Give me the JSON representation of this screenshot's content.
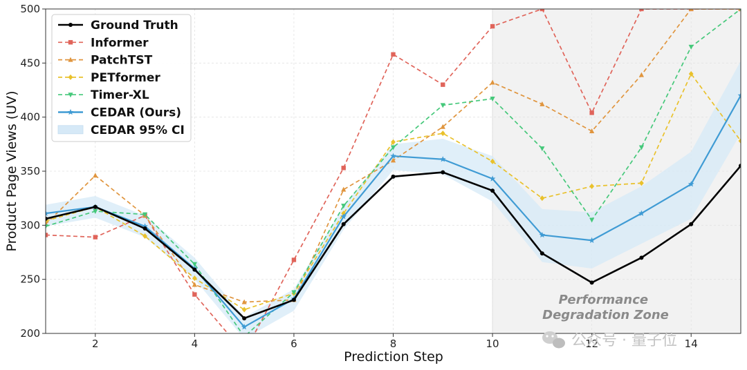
{
  "chart_data": {
    "type": "line",
    "xlabel": "Prediction Step",
    "ylabel": "Product Page Views (UV)",
    "xlim": [
      1,
      15
    ],
    "ylim": [
      200,
      500
    ],
    "xticks": [
      2,
      4,
      6,
      8,
      10,
      12,
      14
    ],
    "yticks": [
      200,
      250,
      300,
      350,
      400,
      450,
      500
    ],
    "grid": true,
    "legend_position": "top-left",
    "x": [
      1,
      2,
      3,
      4,
      5,
      6,
      7,
      8,
      9,
      10,
      11,
      12,
      13,
      14,
      15
    ],
    "series": [
      {
        "name": "Ground Truth",
        "color": "#000000",
        "style": "solid",
        "marker": "circle",
        "values": [
          306,
          317,
          297,
          259,
          214,
          231,
          301,
          345,
          349,
          332,
          274,
          247,
          270,
          301,
          355
        ]
      },
      {
        "name": "Informer",
        "color": "#e0645a",
        "style": "dashed",
        "marker": "square",
        "values": [
          291,
          289,
          309,
          236,
          182,
          268,
          353,
          458,
          430,
          484,
          500,
          404,
          500,
          500,
          500
        ]
      },
      {
        "name": "PatchTST",
        "color": "#e0953e",
        "style": "dashed",
        "marker": "triangle",
        "values": [
          301,
          346,
          309,
          245,
          229,
          231,
          333,
          360,
          391,
          432,
          412,
          387,
          439,
          500,
          500
        ]
      },
      {
        "name": "PETformer",
        "color": "#e9c12b",
        "style": "dashed",
        "marker": "diamond",
        "values": [
          304,
          317,
          290,
          251,
          222,
          237,
          311,
          377,
          385,
          359,
          325,
          336,
          339,
          440,
          378
        ]
      },
      {
        "name": "Timer-XL",
        "color": "#45c87a",
        "style": "dashed",
        "marker": "triangle-down",
        "values": [
          299,
          313,
          310,
          264,
          197,
          238,
          318,
          372,
          411,
          417,
          371,
          305,
          372,
          465,
          500
        ]
      },
      {
        "name": "CEDAR (Ours)",
        "color": "#3f9bd4",
        "style": "solid",
        "marker": "star",
        "values": [
          311,
          317,
          299,
          260,
          206,
          232,
          308,
          364,
          361,
          343,
          291,
          286,
          311,
          338,
          420
        ]
      }
    ],
    "bands": [
      {
        "name": "CEDAR 95% CI",
        "color": "#d6e9f7",
        "lower": [
          299,
          307,
          289,
          250,
          195,
          221,
          296,
          351,
          347,
          322,
          266,
          260,
          283,
          306,
          385
        ],
        "upper": [
          319,
          327,
          309,
          270,
          215,
          241,
          318,
          375,
          380,
          364,
          315,
          312,
          336,
          368,
          452
        ]
      }
    ],
    "annotations": [
      {
        "label": "Performance\nDegradation Zone",
        "x_range": [
          10,
          15
        ],
        "color": "#f2f2f2"
      }
    ]
  },
  "watermark": "公众号 · 量子位"
}
